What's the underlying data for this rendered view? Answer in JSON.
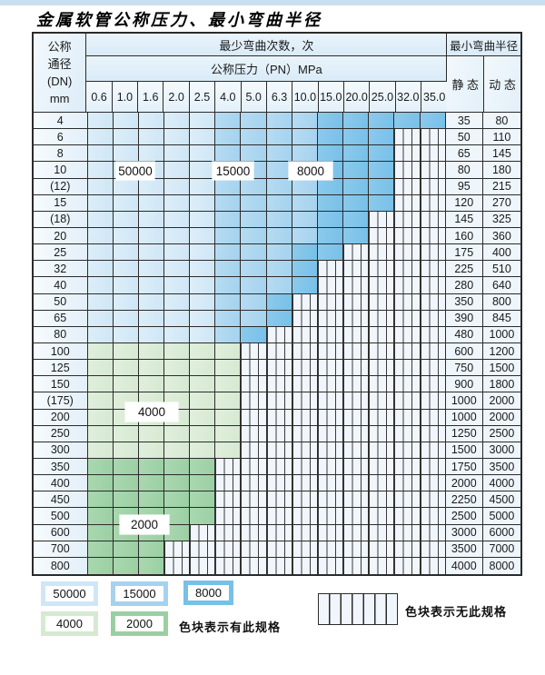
{
  "title": "金属软管公称压力、最小弯曲半径",
  "colors": {
    "c50000": "#cfe6f6",
    "c15000": "#a5d2ee",
    "c8000": "#77c0e8",
    "c4000": "#d6e9d2",
    "c2000": "#9bcfa3",
    "nospec_bg": "#f0f6fb",
    "border": "#2b2b2b"
  },
  "table": {
    "header": {
      "dn_lines": [
        "公称",
        "通径",
        "(DN)",
        "mm"
      ],
      "cycles_label": "最少弯曲次数，次",
      "pressure_label": "公称压力（PN）MPa",
      "pressure_columns": [
        "0.6",
        "1.0",
        "1.6",
        "2.0",
        "2.5",
        "4.0",
        "5.0",
        "6.3",
        "10.0",
        "15.0",
        "20.0",
        "25.0",
        "32.0",
        "35.0"
      ],
      "radius_label": "最小弯曲半径",
      "static_label": "静 态",
      "dynamic_label": "动 态"
    },
    "rows": [
      {
        "dn": "4",
        "static": "35",
        "dynamic": "80",
        "zones": [
          [
            "c50000",
            0,
            4
          ],
          [
            "c15000",
            5,
            8
          ],
          [
            "c8000",
            9,
            13
          ]
        ]
      },
      {
        "dn": "6",
        "static": "50",
        "dynamic": "110",
        "zones": [
          [
            "c50000",
            0,
            4
          ],
          [
            "c15000",
            5,
            8
          ],
          [
            "c8000",
            9,
            11
          ]
        ]
      },
      {
        "dn": "8",
        "static": "65",
        "dynamic": "145",
        "zones": [
          [
            "c50000",
            0,
            4
          ],
          [
            "c15000",
            5,
            8
          ],
          [
            "c8000",
            9,
            11
          ]
        ]
      },
      {
        "dn": "10",
        "static": "80",
        "dynamic": "180",
        "zones": [
          [
            "c50000",
            0,
            4
          ],
          [
            "c15000",
            5,
            8
          ],
          [
            "c8000",
            9,
            11
          ]
        ]
      },
      {
        "dn": "(12)",
        "static": "95",
        "dynamic": "215",
        "zones": [
          [
            "c50000",
            0,
            4
          ],
          [
            "c15000",
            5,
            8
          ],
          [
            "c8000",
            9,
            11
          ]
        ]
      },
      {
        "dn": "15",
        "static": "120",
        "dynamic": "270",
        "zones": [
          [
            "c50000",
            0,
            4
          ],
          [
            "c15000",
            5,
            8
          ],
          [
            "c8000",
            9,
            11
          ]
        ]
      },
      {
        "dn": "(18)",
        "static": "145",
        "dynamic": "325",
        "zones": [
          [
            "c50000",
            0,
            4
          ],
          [
            "c15000",
            5,
            8
          ],
          [
            "c8000",
            9,
            10
          ]
        ]
      },
      {
        "dn": "20",
        "static": "160",
        "dynamic": "360",
        "zones": [
          [
            "c50000",
            0,
            4
          ],
          [
            "c15000",
            5,
            8
          ],
          [
            "c8000",
            9,
            10
          ]
        ]
      },
      {
        "dn": "25",
        "static": "175",
        "dynamic": "400",
        "zones": [
          [
            "c50000",
            0,
            4
          ],
          [
            "c15000",
            5,
            7
          ],
          [
            "c8000",
            8,
            9
          ]
        ]
      },
      {
        "dn": "32",
        "static": "225",
        "dynamic": "510",
        "zones": [
          [
            "c50000",
            0,
            4
          ],
          [
            "c15000",
            5,
            7
          ],
          [
            "c8000",
            8,
            8
          ]
        ]
      },
      {
        "dn": "40",
        "static": "280",
        "dynamic": "640",
        "zones": [
          [
            "c50000",
            0,
            4
          ],
          [
            "c15000",
            5,
            7
          ],
          [
            "c8000",
            8,
            8
          ]
        ]
      },
      {
        "dn": "50",
        "static": "350",
        "dynamic": "800",
        "zones": [
          [
            "c50000",
            0,
            4
          ],
          [
            "c15000",
            5,
            6
          ],
          [
            "c8000",
            7,
            7
          ]
        ]
      },
      {
        "dn": "65",
        "static": "390",
        "dynamic": "845",
        "zones": [
          [
            "c50000",
            0,
            4
          ],
          [
            "c15000",
            5,
            6
          ],
          [
            "c8000",
            7,
            7
          ]
        ]
      },
      {
        "dn": "80",
        "static": "480",
        "dynamic": "1000",
        "zones": [
          [
            "c50000",
            0,
            4
          ],
          [
            "c15000",
            5,
            5
          ],
          [
            "c8000",
            6,
            6
          ]
        ]
      },
      {
        "dn": "100",
        "static": "600",
        "dynamic": "1200",
        "zones": [
          [
            "c4000",
            0,
            5
          ]
        ]
      },
      {
        "dn": "125",
        "static": "750",
        "dynamic": "1500",
        "zones": [
          [
            "c4000",
            0,
            5
          ]
        ]
      },
      {
        "dn": "150",
        "static": "900",
        "dynamic": "1800",
        "zones": [
          [
            "c4000",
            0,
            5
          ]
        ]
      },
      {
        "dn": "(175)",
        "static": "1000",
        "dynamic": "2000",
        "zones": [
          [
            "c4000",
            0,
            5
          ]
        ]
      },
      {
        "dn": "200",
        "static": "1000",
        "dynamic": "2000",
        "zones": [
          [
            "c4000",
            0,
            5
          ]
        ]
      },
      {
        "dn": "250",
        "static": "1250",
        "dynamic": "2500",
        "zones": [
          [
            "c4000",
            0,
            5
          ]
        ]
      },
      {
        "dn": "300",
        "static": "1500",
        "dynamic": "3000",
        "zones": [
          [
            "c4000",
            0,
            5
          ]
        ]
      },
      {
        "dn": "350",
        "static": "1750",
        "dynamic": "3500",
        "zones": [
          [
            "c2000",
            0,
            4
          ]
        ]
      },
      {
        "dn": "400",
        "static": "2000",
        "dynamic": "4000",
        "zones": [
          [
            "c2000",
            0,
            4
          ]
        ]
      },
      {
        "dn": "450",
        "static": "2250",
        "dynamic": "4500",
        "zones": [
          [
            "c2000",
            0,
            4
          ]
        ]
      },
      {
        "dn": "500",
        "static": "2500",
        "dynamic": "5000",
        "zones": [
          [
            "c2000",
            0,
            4
          ]
        ]
      },
      {
        "dn": "600",
        "static": "3000",
        "dynamic": "6000",
        "zones": [
          [
            "c2000",
            0,
            3
          ]
        ]
      },
      {
        "dn": "700",
        "static": "3500",
        "dynamic": "7000",
        "zones": [
          [
            "c2000",
            0,
            2
          ]
        ]
      },
      {
        "dn": "800",
        "static": "4000",
        "dynamic": "8000",
        "zones": [
          [
            "c2000",
            0,
            2
          ]
        ]
      }
    ],
    "overlays": [
      {
        "text": "50000",
        "anchor_rows": "10/(12)",
        "anchor_cols": "1.0-1.6"
      },
      {
        "text": "15000",
        "anchor_rows": "10/(12)",
        "anchor_cols": "4.0-5.0"
      },
      {
        "text": "8000",
        "anchor_rows": "10/(12)",
        "anchor_cols": "10.0-15.0"
      },
      {
        "text": "4000",
        "anchor_rows": "(175)/200",
        "anchor_cols": "1.6-2.0"
      },
      {
        "text": "2000",
        "anchor_rows": "500/600",
        "anchor_cols": "1.0-1.6"
      }
    ]
  },
  "legend": {
    "items": [
      {
        "label": "50000",
        "color": "c50000"
      },
      {
        "label": "15000",
        "color": "c15000"
      },
      {
        "label": "8000",
        "color": "c8000"
      },
      {
        "label": "4000",
        "color": "c4000"
      },
      {
        "label": "2000",
        "color": "c2000"
      }
    ],
    "has_spec_text": "色块表示有此规格",
    "no_spec_text": "色块表示无此规格"
  }
}
